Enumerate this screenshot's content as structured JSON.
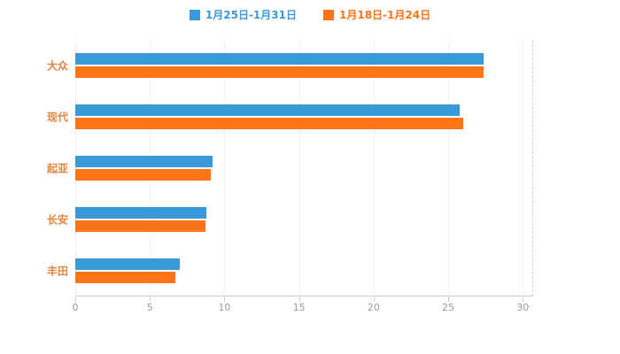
{
  "chart_data": {
    "type": "bar",
    "orientation": "horizontal",
    "title": "",
    "xlabel": "",
    "ylabel": "",
    "categories": [
      "大众",
      "现代",
      "起亚",
      "长安",
      "丰田"
    ],
    "series": [
      {
        "name": "1月25日-1月31日",
        "color": "#3A99D9",
        "values": [
          27.4,
          25.8,
          9.2,
          8.8,
          7.0
        ]
      },
      {
        "name": "1月18日-1月24日",
        "color": "#FF7418",
        "values": [
          27.4,
          26.0,
          9.1,
          8.7,
          6.7
        ]
      }
    ],
    "xticks": [
      0,
      5,
      10,
      15,
      20,
      25,
      30
    ],
    "xlim": [
      0,
      30.7
    ],
    "grid": true,
    "legend_position": "top"
  },
  "colors": {
    "background": "#ffffff",
    "axis_tick_label": "#999999",
    "category_label": "#E8823C",
    "gridline": "#f0f0f0",
    "axis_line": "#cccccc",
    "series_blue": "#3A99D9",
    "series_orange": "#FF7418"
  }
}
